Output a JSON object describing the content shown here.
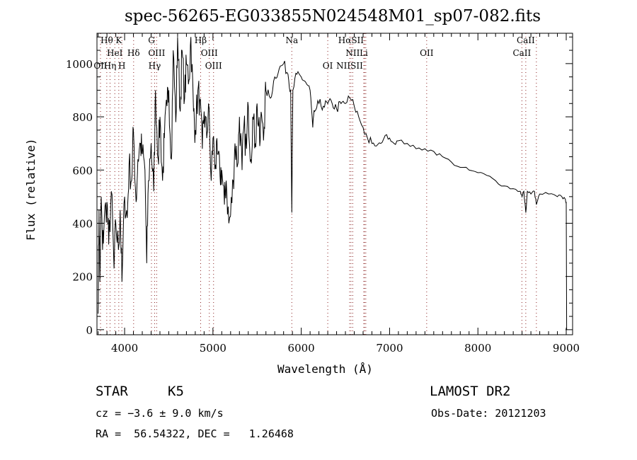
{
  "chart_data": {
    "type": "line",
    "title": "spec-56265-EG033855N024548M01_sp07-082.fits",
    "xlabel": "Wavelength (Å)",
    "ylabel": "Flux (relative)",
    "xlim": [
      3687,
      9072
    ],
    "ylim": [
      -19,
      1114
    ],
    "xticks": [
      4000,
      5000,
      6000,
      7000,
      8000,
      9000
    ],
    "yticks": [
      0,
      200,
      400,
      600,
      800,
      1000
    ],
    "grid": false,
    "series": [
      {
        "name": "spectrum",
        "x": [
          3700,
          3710,
          3720,
          3735,
          3750,
          3770,
          3800,
          3820,
          3850,
          3880,
          3900,
          3930,
          3950,
          3970,
          4000,
          4030,
          4050,
          4080,
          4100,
          4130,
          4150,
          4180,
          4200,
          4230,
          4250,
          4270,
          4300,
          4330,
          4350,
          4380,
          4400,
          4430,
          4450,
          4480,
          4500,
          4530,
          4550,
          4580,
          4600,
          4630,
          4650,
          4680,
          4700,
          4730,
          4750,
          4780,
          4800,
          4830,
          4850,
          4880,
          4900,
          4930,
          4950,
          4980,
          5000,
          5030,
          5050,
          5080,
          5100,
          5130,
          5150,
          5180,
          5200,
          5230,
          5250,
          5280,
          5300,
          5330,
          5350,
          5380,
          5400,
          5430,
          5450,
          5480,
          5500,
          5530,
          5550,
          5580,
          5600,
          5650,
          5700,
          5750,
          5800,
          5850,
          5880,
          5893,
          5905,
          5950,
          6000,
          6050,
          6100,
          6130,
          6150,
          6200,
          6250,
          6300,
          6350,
          6400,
          6450,
          6500,
          6550,
          6600,
          6650,
          6700,
          6750,
          6800,
          6850,
          6900,
          6950,
          7000,
          7050,
          7100,
          7200,
          7300,
          7400,
          7500,
          7600,
          7700,
          7800,
          7900,
          8000,
          8100,
          8200,
          8300,
          8400,
          8480,
          8500,
          8520,
          8542,
          8560,
          8600,
          8640,
          8662,
          8700,
          8800,
          8900,
          8950,
          8990,
          9000,
          9005
        ],
        "y": [
          60,
          450,
          180,
          500,
          300,
          420,
          480,
          320,
          520,
          230,
          400,
          300,
          450,
          180,
          500,
          420,
          620,
          560,
          750,
          480,
          640,
          700,
          660,
          600,
          250,
          560,
          700,
          520,
          900,
          640,
          800,
          560,
          720,
          840,
          900,
          640,
          1050,
          780,
          1100,
          820,
          1050,
          870,
          1000,
          940,
          1100,
          820,
          750,
          900,
          860,
          680,
          820,
          720,
          850,
          560,
          720,
          620,
          660,
          580,
          600,
          470,
          560,
          400,
          430,
          560,
          700,
          620,
          800,
          600,
          760,
          680,
          840,
          640,
          800,
          700,
          850,
          690,
          810,
          760,
          900,
          870,
          950,
          980,
          1000,
          960,
          900,
          440,
          900,
          960,
          950,
          930,
          900,
          760,
          820,
          850,
          840,
          850,
          850,
          830,
          850,
          850,
          870,
          840,
          800,
          760,
          720,
          700,
          690,
          700,
          730,
          720,
          700,
          710,
          700,
          680,
          680,
          670,
          650,
          630,
          610,
          600,
          590,
          580,
          560,
          540,
          530,
          520,
          500,
          520,
          440,
          520,
          510,
          520,
          470,
          510,
          510,
          500,
          500,
          490,
          480,
          0
        ]
      }
    ],
    "lines": [
      {
        "label": "Hθ",
        "wave": 3798,
        "row": 1
      },
      {
        "label": "K",
        "wave": 3934,
        "row": 1
      },
      {
        "label": "G",
        "wave": 4304,
        "row": 1
      },
      {
        "label": "Hβ",
        "wave": 4861,
        "row": 1
      },
      {
        "label": "Na",
        "wave": 5893,
        "row": 1
      },
      {
        "label": "HαSII",
        "wave": 6563,
        "row": 1
      },
      {
        "label": "CaII",
        "wave": 8542,
        "row": 1
      },
      {
        "label": "HeI",
        "wave": 3889,
        "row": 2
      },
      {
        "label": "Hδ",
        "wave": 4102,
        "row": 2
      },
      {
        "label": "OIII",
        "wave": 4363,
        "row": 2
      },
      {
        "label": "OIII",
        "wave": 4959,
        "row": 2
      },
      {
        "label": "NII",
        "wave": 6583,
        "row": 2
      },
      {
        "label": "Li",
        "wave": 6708,
        "row": 2
      },
      {
        "label": "OII",
        "wave": 7420,
        "row": 2
      },
      {
        "label": "CaII",
        "wave": 8498,
        "row": 2
      },
      {
        "label": "OII",
        "wave": 3727,
        "row": 3
      },
      {
        "label": "Hη",
        "wave": 3835,
        "row": 3
      },
      {
        "label": "H",
        "wave": 3969,
        "row": 3
      },
      {
        "label": "Hγ",
        "wave": 4340,
        "row": 3
      },
      {
        "label": "OIII",
        "wave": 5007,
        "row": 3
      },
      {
        "label": "OI",
        "wave": 6300,
        "row": 3
      },
      {
        "label": "NIISII",
        "wave": 6548,
        "row": 3
      }
    ],
    "extra_line_waves": [
      6717,
      6731,
      8662
    ]
  },
  "info": {
    "object_class": "STAR",
    "subclass": "K5",
    "survey": "LAMOST DR2",
    "cz": "cz = −3.6 ± 9.0 km/s",
    "obs_date": "Obs-Date: 20121203",
    "radec": "RA =  56.54322, DEC =   1.26468"
  }
}
